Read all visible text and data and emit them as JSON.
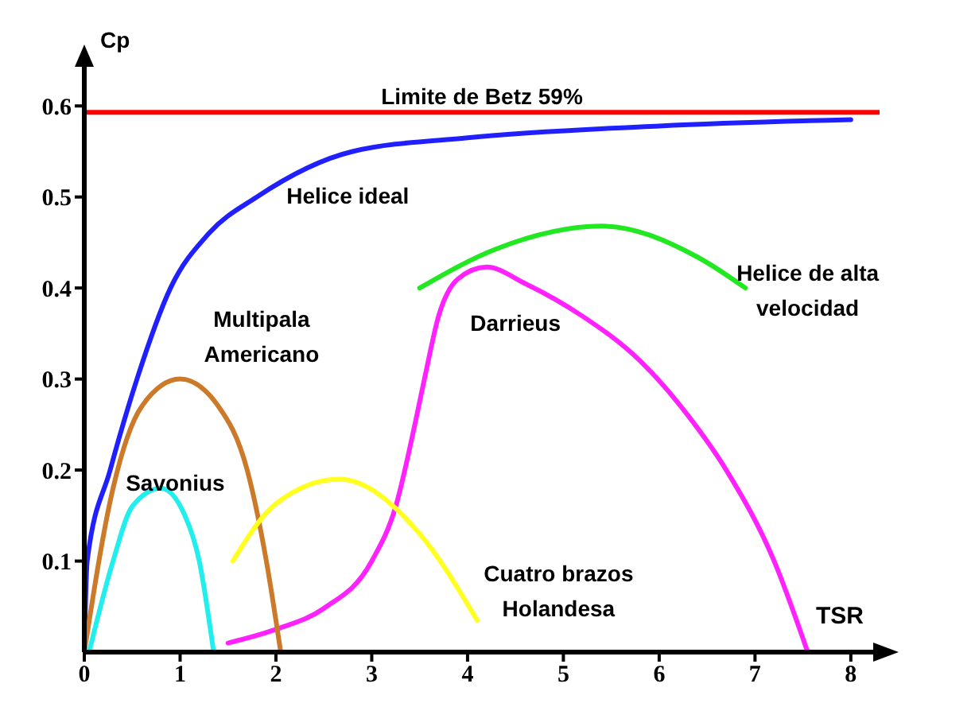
{
  "chart_data": {
    "type": "line",
    "xlabel": "TSR",
    "ylabel": "Cp",
    "xlim": [
      0,
      8.3
    ],
    "ylim": [
      0,
      0.65
    ],
    "xticks": [
      {
        "value": 0,
        "label": "0"
      },
      1,
      2,
      3,
      4,
      5,
      6,
      7,
      8
    ],
    "yticks": [
      0.1,
      0.2,
      0.3,
      0.4,
      0.5,
      0.6
    ],
    "grid": false,
    "legend": false,
    "marker": "none",
    "line_style": "solid",
    "ref_lines": [
      {
        "axis": "y",
        "value": 0.593,
        "label": "Limite de Betz 59%",
        "color": "#ff0000"
      }
    ],
    "series": [
      {
        "name": "Helice ideal",
        "color": "#2020ff",
        "x": [
          0,
          0.03,
          0.27,
          0.55,
          0.9,
          1.3,
          1.8,
          2.8,
          4,
          6,
          8
        ],
        "values": [
          0,
          0.1,
          0.2,
          0.3,
          0.4,
          0.46,
          0.5,
          0.55,
          0.565,
          0.578,
          0.585
        ]
      },
      {
        "name": "Helice de alta velocidad",
        "color": "#22e822",
        "x": [
          3.5,
          4.3,
          5.4,
          6.4,
          6.9
        ],
        "values": [
          0.4,
          0.443,
          0.468,
          0.434,
          0.4
        ]
      },
      {
        "name": "Darrieus",
        "color": "#ff22ff",
        "x": [
          1.5,
          2,
          2.5,
          3,
          3.25,
          3.45,
          3.55,
          3.7,
          3.9,
          4.2,
          4.6,
          5.2,
          5.8,
          6.3,
          6.7,
          7.2,
          7.55
        ],
        "values": [
          0.01,
          0.025,
          0.048,
          0.1,
          0.16,
          0.25,
          0.3,
          0.37,
          0.41,
          0.423,
          0.405,
          0.369,
          0.32,
          0.26,
          0.2,
          0.1,
          0
        ]
      },
      {
        "name": "Multipala Americano",
        "color": "#cc7a2a",
        "x": [
          0,
          0.3,
          0.6,
          1,
          1.4,
          1.7,
          1.9,
          2.05
        ],
        "values": [
          0,
          0.18,
          0.27,
          0.3,
          0.27,
          0.2,
          0.1,
          0
        ]
      },
      {
        "name": "Savonius",
        "color": "#22eeee",
        "x": [
          0.05,
          0.3,
          0.5,
          0.8,
          1.05,
          1.2,
          1.35
        ],
        "values": [
          0,
          0.1,
          0.16,
          0.18,
          0.15,
          0.1,
          0
        ]
      },
      {
        "name": "Cuatro brazos Holandesa",
        "color": "#ffff22",
        "x": [
          1.55,
          2,
          2.66,
          3.5,
          4.1
        ],
        "values": [
          0.1,
          0.163,
          0.19,
          0.13,
          0.035
        ]
      }
    ]
  }
}
